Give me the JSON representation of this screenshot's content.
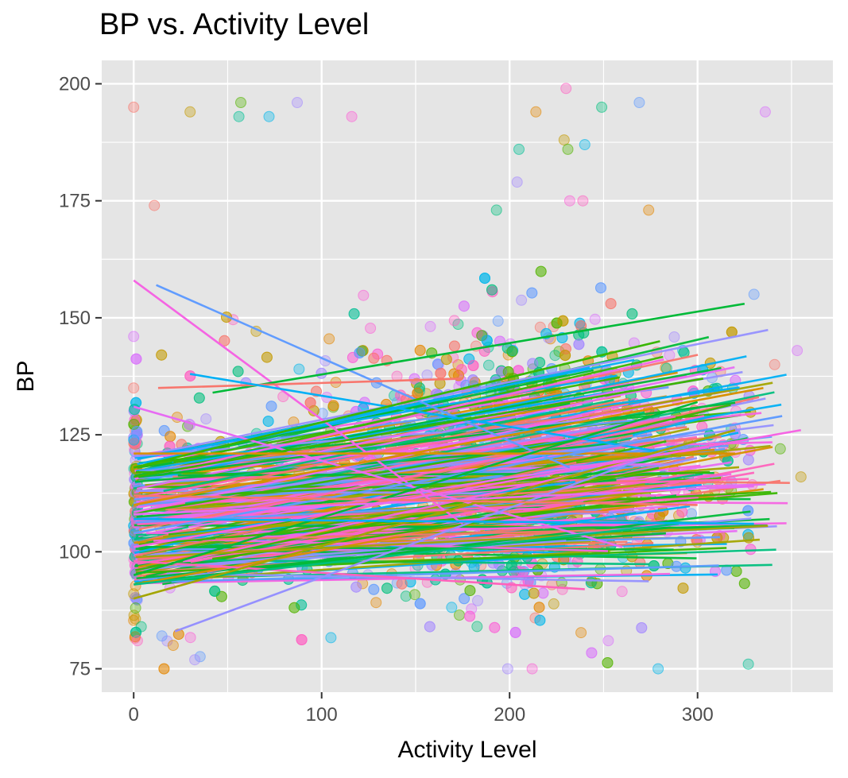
{
  "chart_data": {
    "type": "scatter",
    "title": "BP vs. Activity Level",
    "xlabel": "Activity Level",
    "ylabel": "BP",
    "xlim": [
      -17,
      372
    ],
    "ylim": [
      70,
      205
    ],
    "x_ticks": [
      0,
      100,
      200,
      300
    ],
    "y_ticks": [
      75,
      100,
      125,
      150,
      175,
      200
    ],
    "grid": true,
    "legend": "none",
    "panel_background": "#e5e5e5",
    "grid_color": "#ffffff",
    "point_opacity": 0.35,
    "colors": [
      "#F8766D",
      "#C49A00",
      "#53B400",
      "#00C094",
      "#00B6EB",
      "#A58AFF",
      "#FB61D7",
      "#FF61C3",
      "#E58700",
      "#00BF7D",
      "#619CFF",
      "#DB72FB"
    ],
    "notes": "Many per-group series (random-effects style) with semi-transparent points and fitted linear trend lines per group.",
    "highlighted_points": [
      {
        "x": 0,
        "y": 195
      },
      {
        "x": 30,
        "y": 194
      },
      {
        "x": 57,
        "y": 196
      },
      {
        "x": 56,
        "y": 193
      },
      {
        "x": 72,
        "y": 193
      },
      {
        "x": 87,
        "y": 196
      },
      {
        "x": 116,
        "y": 193
      },
      {
        "x": 230,
        "y": 199
      },
      {
        "x": 214,
        "y": 194
      },
      {
        "x": 249,
        "y": 195
      },
      {
        "x": 269,
        "y": 196
      },
      {
        "x": 336,
        "y": 194
      },
      {
        "x": 11,
        "y": 174
      },
      {
        "x": 229,
        "y": 188
      },
      {
        "x": 231,
        "y": 186
      },
      {
        "x": 205,
        "y": 186
      },
      {
        "x": 240,
        "y": 187
      },
      {
        "x": 204,
        "y": 179
      },
      {
        "x": 232,
        "y": 175
      },
      {
        "x": 239,
        "y": 175
      },
      {
        "x": 274,
        "y": 173
      },
      {
        "x": 193,
        "y": 173
      },
      {
        "x": 330,
        "y": 155
      },
      {
        "x": 353,
        "y": 143
      },
      {
        "x": 341,
        "y": 140
      },
      {
        "x": 355,
        "y": 116
      },
      {
        "x": 344,
        "y": 122
      },
      {
        "x": 327,
        "y": 76
      },
      {
        "x": 279,
        "y": 75
      },
      {
        "x": 199,
        "y": 75
      },
      {
        "x": 212,
        "y": 75
      },
      {
        "x": 2,
        "y": 81
      },
      {
        "x": 21,
        "y": 80
      },
      {
        "x": 4,
        "y": 84
      },
      {
        "x": 15,
        "y": 82
      },
      {
        "x": 0,
        "y": 146
      },
      {
        "x": 0,
        "y": 135
      },
      {
        "x": 0,
        "y": 91
      },
      {
        "x": 1,
        "y": 88
      }
    ],
    "trend_lines": [
      {
        "x1": 0,
        "y1": 158,
        "x2": 175,
        "y2": 106
      },
      {
        "x1": 12,
        "y1": 157,
        "x2": 232,
        "y2": 118
      },
      {
        "x1": 42,
        "y1": 134,
        "x2": 325,
        "y2": 153
      },
      {
        "x1": 0,
        "y1": 131,
        "x2": 260,
        "y2": 101
      },
      {
        "x1": 13,
        "y1": 135,
        "x2": 175,
        "y2": 137
      },
      {
        "x1": 30,
        "y1": 138,
        "x2": 286,
        "y2": 121
      },
      {
        "x1": 0,
        "y1": 116,
        "x2": 303,
        "y2": 137
      },
      {
        "x1": 0,
        "y1": 121,
        "x2": 320,
        "y2": 121
      },
      {
        "x1": 0,
        "y1": 98,
        "x2": 240,
        "y2": 92
      },
      {
        "x1": 0,
        "y1": 93,
        "x2": 290,
        "y2": 106
      },
      {
        "x1": 22,
        "y1": 83,
        "x2": 292,
        "y2": 123
      },
      {
        "x1": 0,
        "y1": 90,
        "x2": 320,
        "y2": 126
      },
      {
        "x1": 0,
        "y1": 101,
        "x2": 355,
        "y2": 126
      },
      {
        "x1": 0,
        "y1": 104,
        "x2": 345,
        "y2": 129
      },
      {
        "x1": 0,
        "y1": 95,
        "x2": 300,
        "y2": 132
      },
      {
        "x1": 0,
        "y1": 108,
        "x2": 330,
        "y2": 114
      },
      {
        "x1": 0,
        "y1": 112,
        "x2": 300,
        "y2": 110
      },
      {
        "x1": 0,
        "y1": 107,
        "x2": 330,
        "y2": 106
      },
      {
        "x1": 0,
        "y1": 118,
        "x2": 280,
        "y2": 145
      },
      {
        "x1": 0,
        "y1": 110,
        "x2": 335,
        "y2": 135
      }
    ]
  }
}
